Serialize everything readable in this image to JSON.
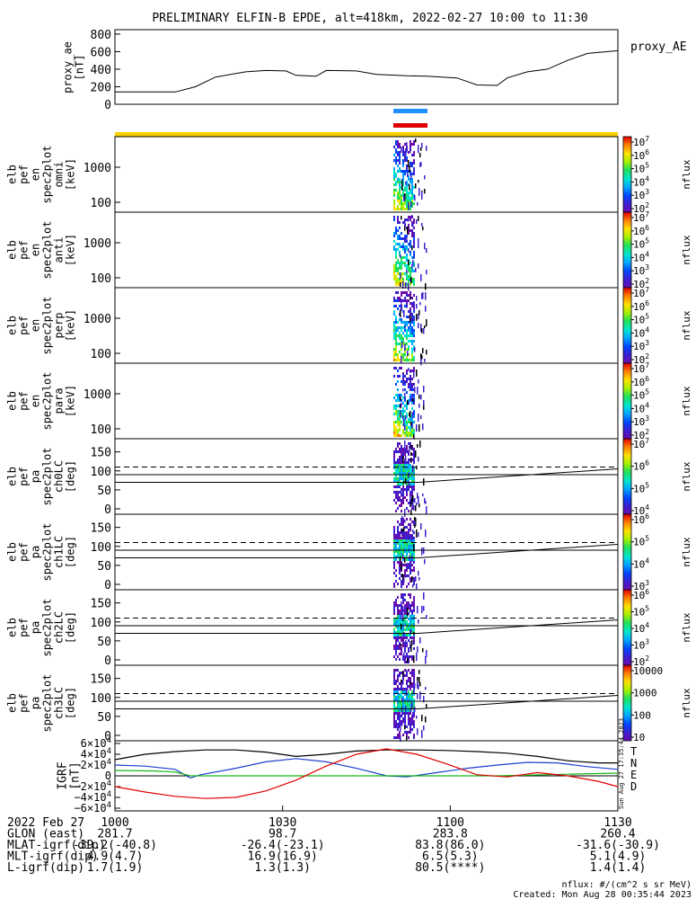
{
  "title": "PRELIMINARY ELFIN-B EPDE, alt=418km, 2022-02-27 10:00 to 11:30",
  "colors": {
    "blue_bar": "#1e90ff",
    "red_bar": "#e00000",
    "yellow_bar": "#f5d000"
  },
  "proxy_ae": {
    "ylabel": "proxy_ae\n[nT]",
    "legend": "proxy_AE",
    "yticks": [
      "800",
      "600",
      "400",
      "200",
      "0"
    ],
    "ylim": [
      0,
      850
    ],
    "series": [
      [
        1000,
        140
      ],
      [
        1012,
        140
      ],
      [
        1016,
        200
      ],
      [
        1020,
        310
      ],
      [
        1026,
        370
      ],
      [
        1030,
        385
      ],
      [
        1034,
        380
      ],
      [
        1036,
        330
      ],
      [
        1040,
        320
      ],
      [
        1042,
        385
      ],
      [
        1048,
        380
      ],
      [
        1052,
        340
      ],
      [
        1058,
        325
      ],
      [
        1062,
        320
      ],
      [
        1068,
        300
      ],
      [
        1072,
        220
      ],
      [
        1076,
        215
      ],
      [
        1078,
        300
      ],
      [
        1082,
        370
      ],
      [
        1086,
        400
      ],
      [
        1090,
        500
      ],
      [
        1094,
        580
      ],
      [
        1098,
        600
      ],
      [
        1100,
        610
      ]
    ]
  },
  "spectrograms": [
    {
      "ylabel": "elb\npef\nen\nspec2plot\nomni\n[keV]",
      "yticks": [
        "1000",
        "100"
      ]
    },
    {
      "ylabel": "elb\npef\nen\nspec2plot\nanti\n[keV]",
      "yticks": [
        "1000",
        "100"
      ]
    },
    {
      "ylabel": "elb\npef\nen\nspec2plot\nperp\n[keV]",
      "yticks": [
        "1000",
        "100"
      ]
    },
    {
      "ylabel": "elb\npef\nen\nspec2plot\npara\n[keV]",
      "yticks": [
        "1000",
        "100"
      ]
    }
  ],
  "pitch_panels": [
    {
      "ylabel": "elb\npef\npa\nspec2plot\nch0LC\n[deg]",
      "yticks": [
        "150",
        "100",
        "50",
        "0"
      ]
    },
    {
      "ylabel": "elb\npef\npa\nspec2plot\nch1LC\n[deg]",
      "yticks": [
        "150",
        "100",
        "50",
        "0"
      ]
    },
    {
      "ylabel": "elb\npef\npa\nspec2plot\nch2LC\n[deg]",
      "yticks": [
        "150",
        "100",
        "50",
        "0"
      ]
    },
    {
      "ylabel": "elb\npef\npa\nspec2plot\nch3LC\n[deg]",
      "yticks": [
        "150",
        "100",
        "50",
        "0"
      ]
    }
  ],
  "colorbars": [
    {
      "label": "nflux",
      "ticks": [
        "10^7",
        "10^6",
        "10^5",
        "10^4",
        "10^3",
        "10^2"
      ]
    },
    {
      "label": "nflux",
      "ticks": [
        "10^7",
        "10^6",
        "10^5",
        "10^4",
        "10^3",
        "10^2"
      ]
    },
    {
      "label": "nflux",
      "ticks": [
        "10^7",
        "10^6",
        "10^5",
        "10^4",
        "10^3",
        "10^2"
      ]
    },
    {
      "label": "nflux",
      "ticks": [
        "10^7",
        "10^6",
        "10^5",
        "10^4",
        "10^3",
        "10^2"
      ]
    },
    {
      "label": "nflux",
      "ticks": [
        "10^7",
        "10^6",
        "10^5",
        "10^4"
      ]
    },
    {
      "label": "nflux",
      "ticks": [
        "10^6",
        "10^5",
        "10^4",
        "10^3"
      ]
    },
    {
      "label": "nflux",
      "ticks": [
        "10^6",
        "10^5",
        "10^4",
        "10^3",
        "10^2"
      ]
    },
    {
      "label": "nflux",
      "ticks": [
        "10000",
        "1000",
        "100",
        "10"
      ]
    }
  ],
  "igrf": {
    "ylabel": "IGRF\n[nT]",
    "yticks": [
      "6×10^4",
      "4×10^4",
      "2×10^4",
      "0",
      "−2×10^4",
      "−4×10^4",
      "−6×10^4"
    ],
    "ylim": [
      -65000,
      65000
    ],
    "legend": [
      {
        "name": "T",
        "color": "#000000"
      },
      {
        "name": "N",
        "color": "#1c3fd0"
      },
      {
        "name": "E",
        "color": "#18b818"
      },
      {
        "name": "D",
        "color": "#e00000"
      }
    ],
    "series": {
      "T": [
        [
          1000,
          30000
        ],
        [
          1006,
          40000
        ],
        [
          1012,
          45000
        ],
        [
          1018,
          48000
        ],
        [
          1024,
          48000
        ],
        [
          1030,
          44000
        ],
        [
          1036,
          36000
        ],
        [
          1042,
          40000
        ],
        [
          1048,
          46000
        ],
        [
          1054,
          48000
        ],
        [
          1060,
          48000
        ],
        [
          1066,
          47000
        ],
        [
          1072,
          45000
        ],
        [
          1078,
          42000
        ],
        [
          1084,
          36000
        ],
        [
          1090,
          28000
        ],
        [
          1096,
          24000
        ],
        [
          1100,
          24000
        ]
      ],
      "N": [
        [
          1000,
          20000
        ],
        [
          1006,
          18000
        ],
        [
          1012,
          12000
        ],
        [
          1015,
          -4000
        ],
        [
          1017,
          2000
        ],
        [
          1024,
          14000
        ],
        [
          1030,
          26000
        ],
        [
          1036,
          32000
        ],
        [
          1042,
          26000
        ],
        [
          1048,
          14000
        ],
        [
          1054,
          0
        ],
        [
          1058,
          -2000
        ],
        [
          1064,
          6000
        ],
        [
          1070,
          14000
        ],
        [
          1076,
          20000
        ],
        [
          1082,
          25000
        ],
        [
          1088,
          24000
        ],
        [
          1094,
          17000
        ],
        [
          1100,
          12000
        ]
      ],
      "E": [
        [
          1000,
          10000
        ],
        [
          1008,
          9000
        ],
        [
          1012,
          7000
        ],
        [
          1015,
          0
        ],
        [
          1020,
          0
        ],
        [
          1060,
          0
        ],
        [
          1076,
          0
        ],
        [
          1090,
          3000
        ],
        [
          1100,
          5000
        ]
      ],
      "D": [
        [
          1000,
          -20000
        ],
        [
          1006,
          -30000
        ],
        [
          1012,
          -38000
        ],
        [
          1018,
          -42000
        ],
        [
          1024,
          -40000
        ],
        [
          1030,
          -28000
        ],
        [
          1036,
          -8000
        ],
        [
          1042,
          18000
        ],
        [
          1048,
          40000
        ],
        [
          1054,
          50000
        ],
        [
          1060,
          40000
        ],
        [
          1066,
          22000
        ],
        [
          1072,
          2000
        ],
        [
          1078,
          -2000
        ],
        [
          1084,
          6000
        ],
        [
          1090,
          0
        ],
        [
          1096,
          -10000
        ],
        [
          1100,
          -20000
        ]
      ]
    }
  },
  "dashed_level_deg": 110,
  "solid_level_a_deg": 90,
  "solid_level_b_deg": 70,
  "xlim": [
    1000,
    1130
  ],
  "orbit_table": {
    "rows": [
      {
        "label": "2022 Feb 27",
        "values": [
          "1000",
          "1030",
          "1100",
          "1130"
        ]
      },
      {
        "label": "GLON (east)",
        "values": [
          "281.7",
          "98.7",
          "283.8",
          "260.4"
        ]
      },
      {
        "label": "MLAT-igrf(dip)",
        "values": [
          "-39.2(-40.8)",
          "-26.4(-23.1)",
          "83.8(86.0)",
          "-31.6(-30.9)"
        ]
      },
      {
        "label": "MLT-igrf(dip)",
        "values": [
          "4.9(4.7)",
          "16.9(16.9)",
          "6.5(5.3)",
          "5.1(4.9)"
        ]
      },
      {
        "label": "L-igrf(dip)",
        "values": [
          "1.7(1.9)",
          "1.3(1.3)",
          "80.5(****)",
          "1.4(1.4)"
        ]
      }
    ]
  },
  "footer": {
    "units": "nflux: #/(cm^2 s sr MeV)",
    "created": "Created: Mon Aug 28 00:35:44 2023",
    "side_stamp": "Sun Aug 27 17:35:44 2023"
  }
}
